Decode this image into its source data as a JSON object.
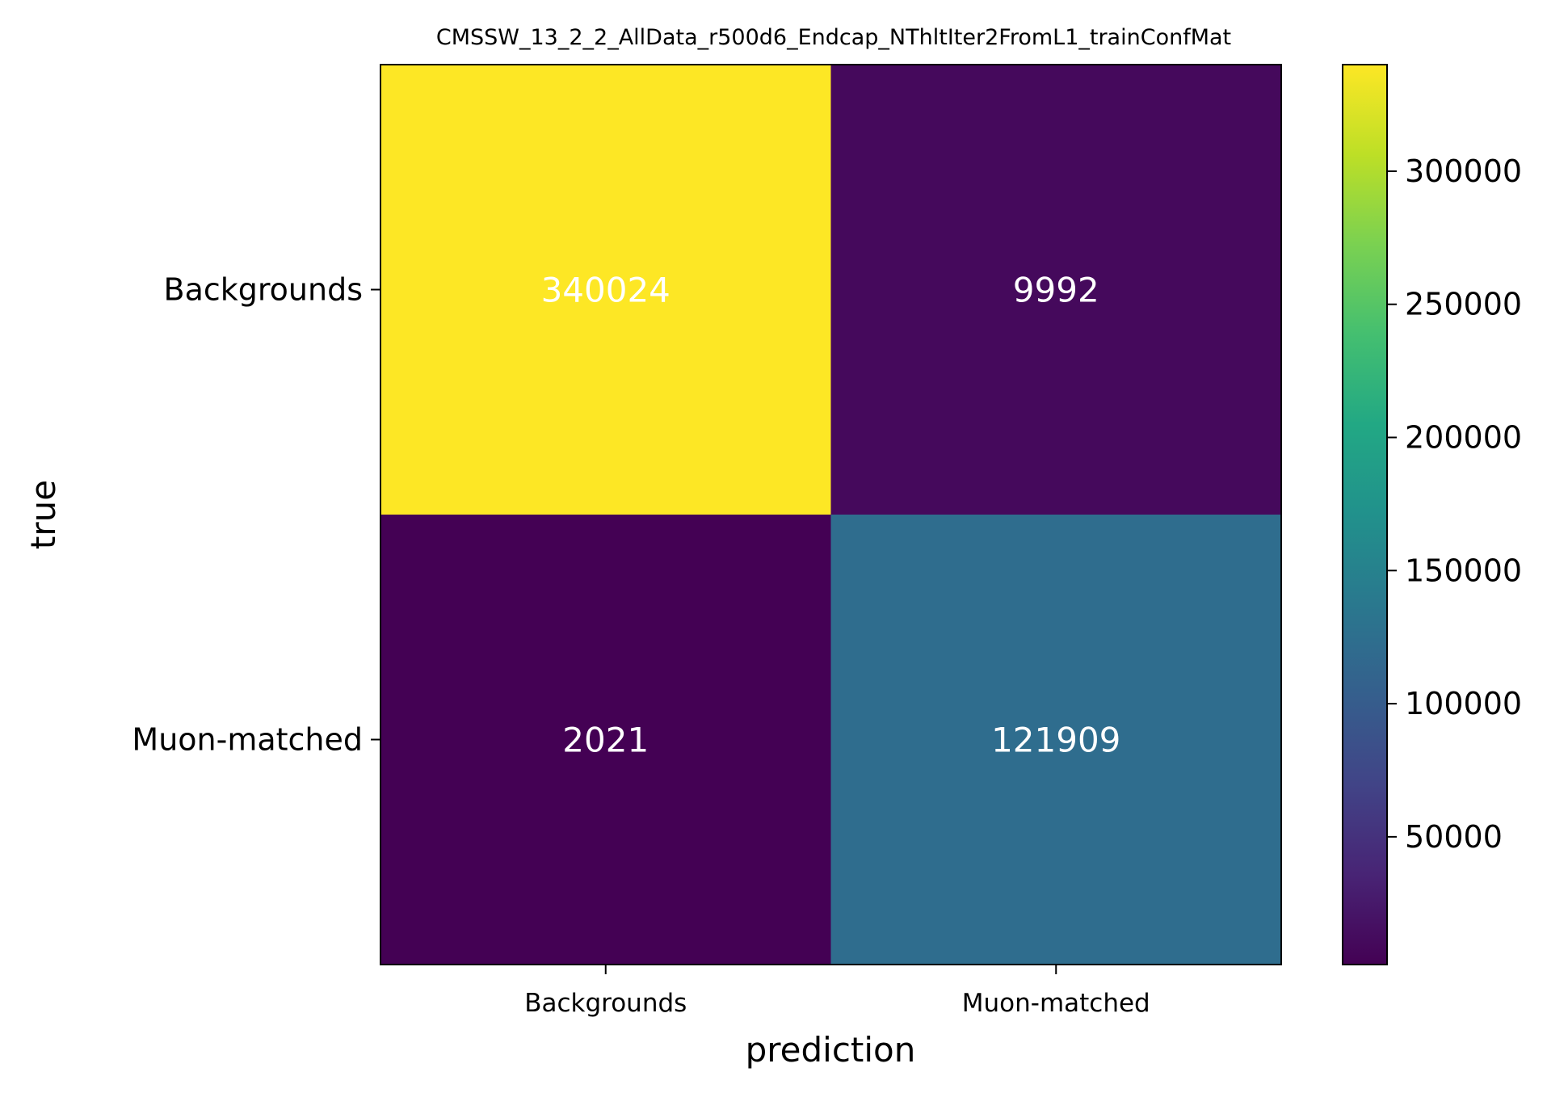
{
  "chart_data": {
    "type": "heatmap",
    "title": "CMSSW_13_2_2_AllData_r500d6_Endcap_NThltIter2FromL1_trainConfMat",
    "xlabel": "prediction",
    "ylabel": "true",
    "x_categories": [
      "Backgrounds",
      "Muon-matched"
    ],
    "y_categories": [
      "Backgrounds",
      "Muon-matched"
    ],
    "values": [
      [
        340024,
        9992
      ],
      [
        2021,
        121909
      ]
    ],
    "cell_labels": [
      [
        "340024",
        "9992"
      ],
      [
        "2021",
        "121909"
      ]
    ],
    "cell_label_color": "#ffffff",
    "colormap": "viridis",
    "colorbar": {
      "range": [
        2021,
        340024
      ],
      "ticks": [
        50000,
        100000,
        150000,
        200000,
        250000,
        300000
      ],
      "tick_labels": [
        "50000",
        "100000",
        "150000",
        "200000",
        "250000",
        "300000"
      ]
    }
  }
}
